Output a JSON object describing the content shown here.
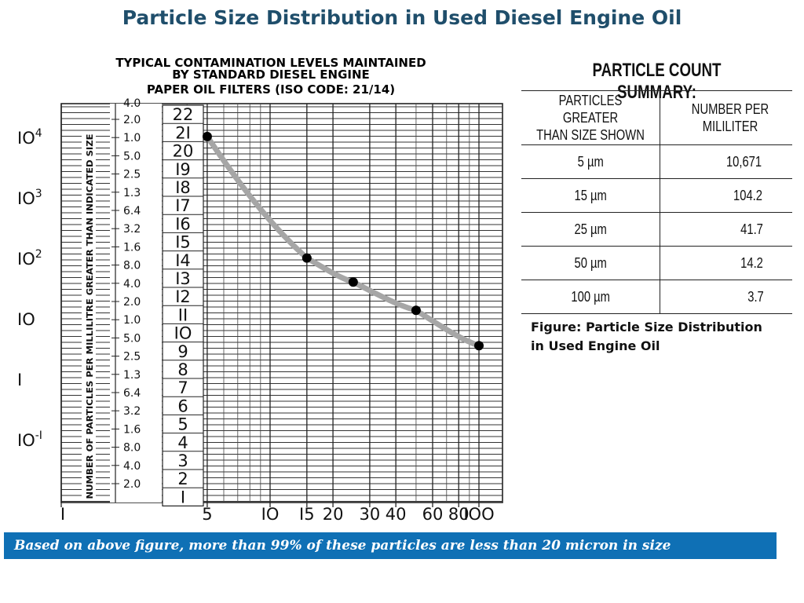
{
  "title": "Particle Size Distribution in Used Diesel Engine Oil",
  "chart_data": {
    "type": "line",
    "title": "TYPICAL CONTAMINATION LEVELS MAINTAINED BY STANDARD DIESEL ENGINE PAPER OIL FILTERS (ISO CODE: 21/14)",
    "title_lines": [
      "TYPICAL CONTAMINATION LEVELS MAINTAINED",
      "BY STANDARD DIESEL ENGINE",
      "PAPER OIL FILTERS (ISO CODE: 21/14)"
    ],
    "ylabel": "NUMBER OF PARTICLES PER MILLILITRE GREATER THAN INDICATED SIZE",
    "xlabel": "",
    "x_scale": "log",
    "y_scale": "log",
    "xlim": [
      1,
      100
    ],
    "ylim": [
      0.01,
      25000
    ],
    "x_ticks": [
      1,
      5,
      10,
      15,
      20,
      30,
      40,
      60,
      80,
      100
    ],
    "x_tick_labels": [
      "I",
      "5",
      "IO",
      "I5",
      "20",
      "30",
      "40",
      "60",
      "80",
      "IOO"
    ],
    "y_outer_ticks": [
      {
        "value": 10000,
        "label": "IO",
        "sup": "4"
      },
      {
        "value": 1000,
        "label": "IO",
        "sup": "3"
      },
      {
        "value": 100,
        "label": "IO",
        "sup": "2"
      },
      {
        "value": 10,
        "label": "IO",
        "sup": ""
      },
      {
        "value": 1,
        "label": "I",
        "sup": ""
      },
      {
        "value": 0.1,
        "label": "IO",
        "sup": "-I"
      }
    ],
    "y_inner_ticks": [
      {
        "value": 20000,
        "label": "2.0"
      },
      {
        "value": 10000,
        "label": "1.0"
      },
      {
        "value": 5000,
        "label": "5.0"
      },
      {
        "value": 2500,
        "label": "2.5"
      },
      {
        "value": 1300,
        "label": "1.3"
      },
      {
        "value": 640,
        "label": "6.4"
      },
      {
        "value": 320,
        "label": "3.2"
      },
      {
        "value": 160,
        "label": "1.6"
      },
      {
        "value": 80,
        "label": "8.0"
      },
      {
        "value": 40,
        "label": "4.0"
      },
      {
        "value": 20,
        "label": "2.0"
      },
      {
        "value": 10,
        "label": "1.0"
      },
      {
        "value": 5,
        "label": "5.0"
      },
      {
        "value": 2.5,
        "label": "2.5"
      },
      {
        "value": 1.3,
        "label": "1.3"
      },
      {
        "value": 0.64,
        "label": "6.4"
      },
      {
        "value": 0.32,
        "label": "3.2"
      },
      {
        "value": 0.16,
        "label": "1.6"
      },
      {
        "value": 0.08,
        "label": "8.0"
      },
      {
        "value": 0.04,
        "label": "4.0"
      },
      {
        "value": 0.02,
        "label": "2.0"
      }
    ],
    "iso_codes": [
      "22",
      "2I",
      "20",
      "I9",
      "I8",
      "I7",
      "I6",
      "I5",
      "I4",
      "I3",
      "I2",
      "II",
      "IO",
      "9",
      "8",
      "7",
      "6",
      "5",
      "4",
      "3",
      "2",
      "I"
    ],
    "series": [
      {
        "x": [
          5,
          15,
          25,
          50,
          100
        ],
        "y": [
          10671,
          104.2,
          41.7,
          14.2,
          3.7
        ]
      }
    ],
    "grid": true
  },
  "summary": {
    "title": "PARTICLE COUNT SUMMARY:",
    "headers": [
      [
        "PARTICLES GREATER",
        "THAN SIZE SHOWN"
      ],
      [
        "NUMBER PER",
        "MILILITER"
      ]
    ],
    "rows": [
      {
        "size": "5 µm",
        "count": "10,671"
      },
      {
        "size": "15 µm",
        "count": "104.2"
      },
      {
        "size": "25 µm",
        "count": "41.7"
      },
      {
        "size": "50 µm",
        "count": "14.2"
      },
      {
        "size": "100 µm",
        "count": "3.7"
      }
    ]
  },
  "caption": {
    "line1": "Figure: Particle Size Distribution",
    "line2": "in Used Engine Oil"
  },
  "banner": "Based on above figure, more than 99% of these particles are less than 20 micron in size",
  "colors": {
    "title": "#1f4e6b",
    "banner": "#0f70b5",
    "curve": "#a6a6a6",
    "ink": "#111111"
  }
}
